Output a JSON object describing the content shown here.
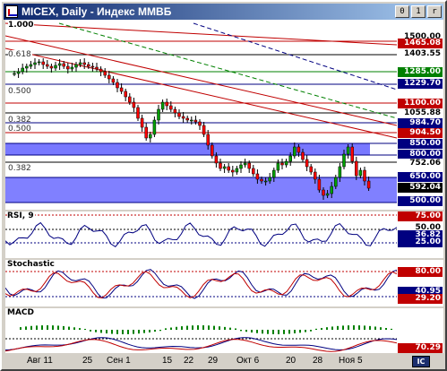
{
  "window": {
    "title": "MICEX, Daily - Индекс ММВБ",
    "minimize_glyph": "0",
    "maximize_glyph": "1",
    "close_glyph": "r"
  },
  "main_chart": {
    "fib_labels": [
      "1.000",
      "0.618",
      "0.500",
      "0.382",
      "0.500",
      "0.382"
    ],
    "price_levels": [
      {
        "value": "1500.00",
        "bg": "#ffffff",
        "fg": "#000000"
      },
      {
        "value": "1465.08",
        "bg": "#c00000",
        "fg": "#ffffff"
      },
      {
        "value": "1403.55",
        "bg": "#ffffff",
        "fg": "#000000"
      },
      {
        "value": "1285.00",
        "bg": "#008000",
        "fg": "#ffffff"
      },
      {
        "value": "1229.70",
        "bg": "#000080",
        "fg": "#ffffff"
      },
      {
        "value": "1100.00",
        "bg": "#c00000",
        "fg": "#ffffff"
      },
      {
        "value": "1055.88",
        "bg": "#ffffff",
        "fg": "#000000"
      },
      {
        "value": "984.70",
        "bg": "#000080",
        "fg": "#ffffff"
      },
      {
        "value": "904.50",
        "bg": "#c00000",
        "fg": "#ffffff"
      },
      {
        "value": "850.00",
        "bg": "#000080",
        "fg": "#ffffff"
      },
      {
        "value": "800.00",
        "bg": "#000080",
        "fg": "#ffffff"
      },
      {
        "value": "752.06",
        "bg": "#ffffff",
        "fg": "#000000"
      },
      {
        "value": "650.00",
        "bg": "#000080",
        "fg": "#ffffff"
      },
      {
        "value": "592.04",
        "bg": "#000000",
        "fg": "#ffffff"
      },
      {
        "value": "500.00",
        "bg": "#000080",
        "fg": "#ffffff"
      }
    ]
  },
  "rsi": {
    "label": "RSI, 9",
    "levels": [
      {
        "value": "75.00",
        "bg": "#c00000",
        "fg": "#ffffff"
      },
      {
        "value": "50.00",
        "bg": "#ffffff",
        "fg": "#000000"
      },
      {
        "value": "36.82",
        "bg": "#000080",
        "fg": "#ffffff"
      },
      {
        "value": "25.00",
        "bg": "#000080",
        "fg": "#ffffff"
      }
    ]
  },
  "stochastic": {
    "label": "Stochastic",
    "levels": [
      {
        "value": "80.00",
        "bg": "#c00000",
        "fg": "#ffffff"
      },
      {
        "value": "40.95",
        "bg": "#000080",
        "fg": "#ffffff"
      },
      {
        "value": "29.20",
        "bg": "#c00000",
        "fg": "#ffffff"
      }
    ]
  },
  "macd": {
    "label": "MACD",
    "levels": [
      {
        "value": "70.29",
        "bg": "#c00000",
        "fg": "#ffffff"
      }
    ]
  },
  "x_axis": {
    "labels": [
      "Авг 11",
      "25",
      "Сен 1",
      "15",
      "22",
      "29",
      "Окт 6",
      "20",
      "28",
      "Ноя 5"
    ]
  },
  "corner_button": {
    "label": "IC"
  }
}
